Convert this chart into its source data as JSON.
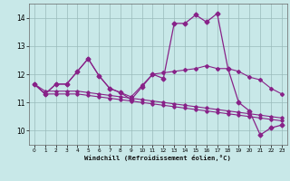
{
  "xlabel": "Windchill (Refroidissement éolien,°C)",
  "xlim": [
    -0.5,
    23.5
  ],
  "ylim": [
    9.5,
    14.5
  ],
  "yticks": [
    10,
    11,
    12,
    13,
    14
  ],
  "xticks": [
    0,
    1,
    2,
    3,
    4,
    5,
    6,
    7,
    8,
    9,
    10,
    11,
    12,
    13,
    14,
    15,
    16,
    17,
    18,
    19,
    20,
    21,
    22,
    23
  ],
  "background_color": "#c8e8e8",
  "line_color": "#882288",
  "grid_color": "#99bbbb",
  "series": [
    {
      "x": [
        0,
        1,
        2,
        3,
        4,
        5,
        6,
        7,
        8,
        9,
        10,
        11,
        12,
        13,
        14,
        15,
        16,
        17,
        18,
        19,
        20,
        21,
        22,
        23
      ],
      "y": [
        11.65,
        11.3,
        11.65,
        11.65,
        12.1,
        12.55,
        11.95,
        11.5,
        11.35,
        11.1,
        11.55,
        12.0,
        11.85,
        13.8,
        13.8,
        14.1,
        13.85,
        14.15,
        12.2,
        11.0,
        10.7,
        9.85,
        10.1,
        10.2
      ],
      "marker": "D",
      "markersize": 2.5,
      "linewidth": 0.9
    },
    {
      "x": [
        0,
        1,
        2,
        3,
        4,
        5,
        6,
        7,
        8,
        9,
        10,
        11,
        12,
        13,
        14,
        15,
        16,
        17,
        18,
        19,
        20,
        21,
        22,
        23
      ],
      "y": [
        11.65,
        11.3,
        11.65,
        11.65,
        12.1,
        12.55,
        11.95,
        11.5,
        11.35,
        11.2,
        11.6,
        12.0,
        12.05,
        12.1,
        12.15,
        12.2,
        12.3,
        12.2,
        12.2,
        12.1,
        11.9,
        11.8,
        11.5,
        11.3
      ],
      "marker": "D",
      "markersize": 2.0,
      "linewidth": 0.8
    },
    {
      "x": [
        0,
        1,
        2,
        3,
        4,
        5,
        6,
        7,
        8,
        9,
        10,
        11,
        12,
        13,
        14,
        15,
        16,
        17,
        18,
        19,
        20,
        21,
        22,
        23
      ],
      "y": [
        11.65,
        11.4,
        11.4,
        11.4,
        11.4,
        11.35,
        11.3,
        11.25,
        11.2,
        11.15,
        11.1,
        11.05,
        11.0,
        10.95,
        10.9,
        10.85,
        10.8,
        10.75,
        10.7,
        10.65,
        10.6,
        10.55,
        10.5,
        10.45
      ],
      "marker": "D",
      "markersize": 1.8,
      "linewidth": 0.8
    },
    {
      "x": [
        0,
        1,
        2,
        3,
        4,
        5,
        6,
        7,
        8,
        9,
        10,
        11,
        12,
        13,
        14,
        15,
        16,
        17,
        18,
        19,
        20,
        21,
        22,
        23
      ],
      "y": [
        11.65,
        11.3,
        11.3,
        11.3,
        11.3,
        11.25,
        11.2,
        11.15,
        11.1,
        11.05,
        11.0,
        10.95,
        10.9,
        10.85,
        10.8,
        10.75,
        10.7,
        10.65,
        10.6,
        10.55,
        10.5,
        10.45,
        10.4,
        10.35
      ],
      "marker": "D",
      "markersize": 1.8,
      "linewidth": 0.8
    }
  ]
}
